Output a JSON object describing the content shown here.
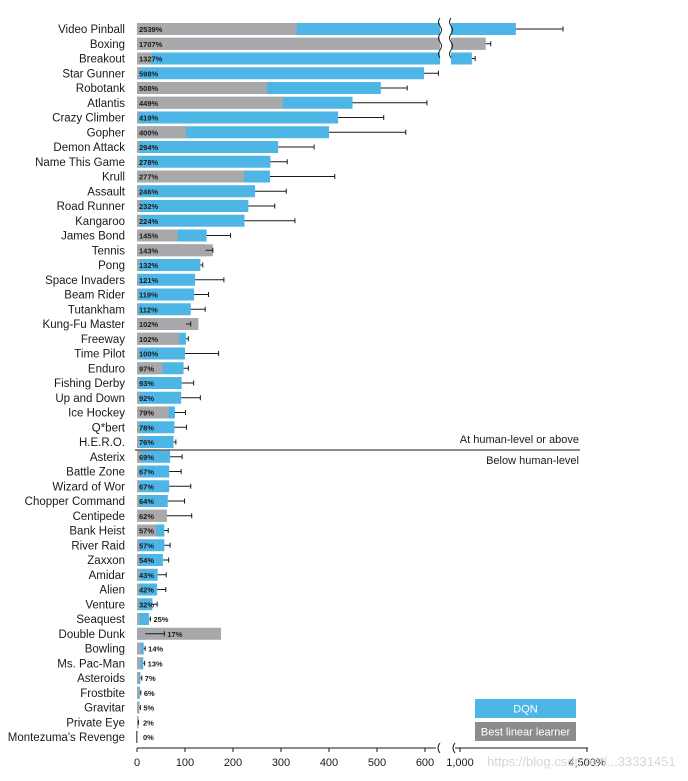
{
  "chart_data": {
    "type": "bar",
    "orientation": "horizontal",
    "title": "",
    "xlabel": "",
    "ylabel": "",
    "units": "% of human-level performance",
    "categories": [
      "Video Pinball",
      "Boxing",
      "Breakout",
      "Star Gunner",
      "Robotank",
      "Atlantis",
      "Crazy Climber",
      "Gopher",
      "Demon Attack",
      "Name This Game",
      "Krull",
      "Assault",
      "Road Runner",
      "Kangaroo",
      "James Bond",
      "Tennis",
      "Pong",
      "Space Invaders",
      "Beam Rider",
      "Tutankham",
      "Kung-Fu Master",
      "Freeway",
      "Time Pilot",
      "Enduro",
      "Fishing Derby",
      "Up and Down",
      "Ice Hockey",
      "Q*bert",
      "H.E.R.O.",
      "Asterix",
      "Battle Zone",
      "Wizard of Wor",
      "Chopper Command",
      "Centipede",
      "Bank Heist",
      "River Raid",
      "Zaxxon",
      "Amidar",
      "Alien",
      "Venture",
      "Seaquest",
      "Double Dunk",
      "Bowling",
      "Ms. Pac-Man",
      "Asteroids",
      "Frostbite",
      "Gravitar",
      "Private Eye",
      "Montezuma's Revenge"
    ],
    "series": [
      {
        "name": "DQN",
        "color": "#4db6e6",
        "labels": [
          "2539%",
          "1707%",
          "1327%",
          "598%",
          "508%",
          "449%",
          "419%",
          "400%",
          "294%",
          "278%",
          "277%",
          "246%",
          "232%",
          "224%",
          "145%",
          "143%",
          "132%",
          "121%",
          "119%",
          "112%",
          "102%",
          "102%",
          "100%",
          "97%",
          "93%",
          "92%",
          "79%",
          "78%",
          "76%",
          "69%",
          "67%",
          "67%",
          "64%",
          "62%",
          "57%",
          "57%",
          "54%",
          "43%",
          "42%",
          "32%",
          "25%",
          "17%",
          "14%",
          "13%",
          "7%",
          "6%",
          "5%",
          "2%",
          "0%"
        ],
        "values": [
          2539,
          1707,
          1327,
          598,
          508,
          449,
          419,
          400,
          294,
          278,
          277,
          246,
          232,
          224,
          145,
          143,
          132,
          121,
          119,
          112,
          102,
          102,
          100,
          97,
          93,
          92,
          79,
          78,
          76,
          69,
          67,
          67,
          64,
          62,
          57,
          57,
          54,
          43,
          42,
          32,
          25,
          17,
          14,
          13,
          7,
          6,
          5,
          2,
          0
        ],
        "error": [
          1300,
          140,
          90,
          30,
          55,
          155,
          95,
          160,
          75,
          35,
          135,
          65,
          55,
          105,
          50,
          15,
          5,
          60,
          30,
          30,
          10,
          5,
          70,
          10,
          25,
          40,
          22,
          25,
          5,
          25,
          25,
          45,
          35,
          52,
          8,
          12,
          12,
          18,
          18,
          10,
          3,
          40,
          3,
          3,
          3,
          2,
          2,
          1,
          0
        ]
      },
      {
        "name": "Best linear learner",
        "color": "#a8a8aa",
        "values": [
          333,
          1705,
          30,
          6,
          271,
          304,
          3,
          102,
          5,
          5,
          223,
          5,
          6,
          8,
          85,
          158,
          5,
          3,
          3,
          3,
          128,
          88,
          5,
          53,
          5,
          5,
          66,
          5,
          5,
          8,
          5,
          5,
          5,
          62,
          40,
          5,
          5,
          5,
          5,
          5,
          5,
          175,
          8,
          8,
          4,
          4,
          4,
          1,
          0
        ]
      }
    ],
    "axis": {
      "ticks": [
        "0",
        "100",
        "200",
        "300",
        "400",
        "500",
        "600",
        "1,000",
        "4,500%"
      ],
      "break_between": [
        "600",
        "1,000"
      ]
    },
    "separator": {
      "upper_label": "At human-level or above",
      "lower_label": "Below human-level"
    },
    "legend": [
      {
        "label": "DQN",
        "color": "#4db6e6"
      },
      {
        "label": "Best linear learner",
        "color": "#8c8c8e"
      }
    ],
    "legend_position": "bottom-right"
  },
  "watermark": "https://blog.csdn.net/...33331451"
}
